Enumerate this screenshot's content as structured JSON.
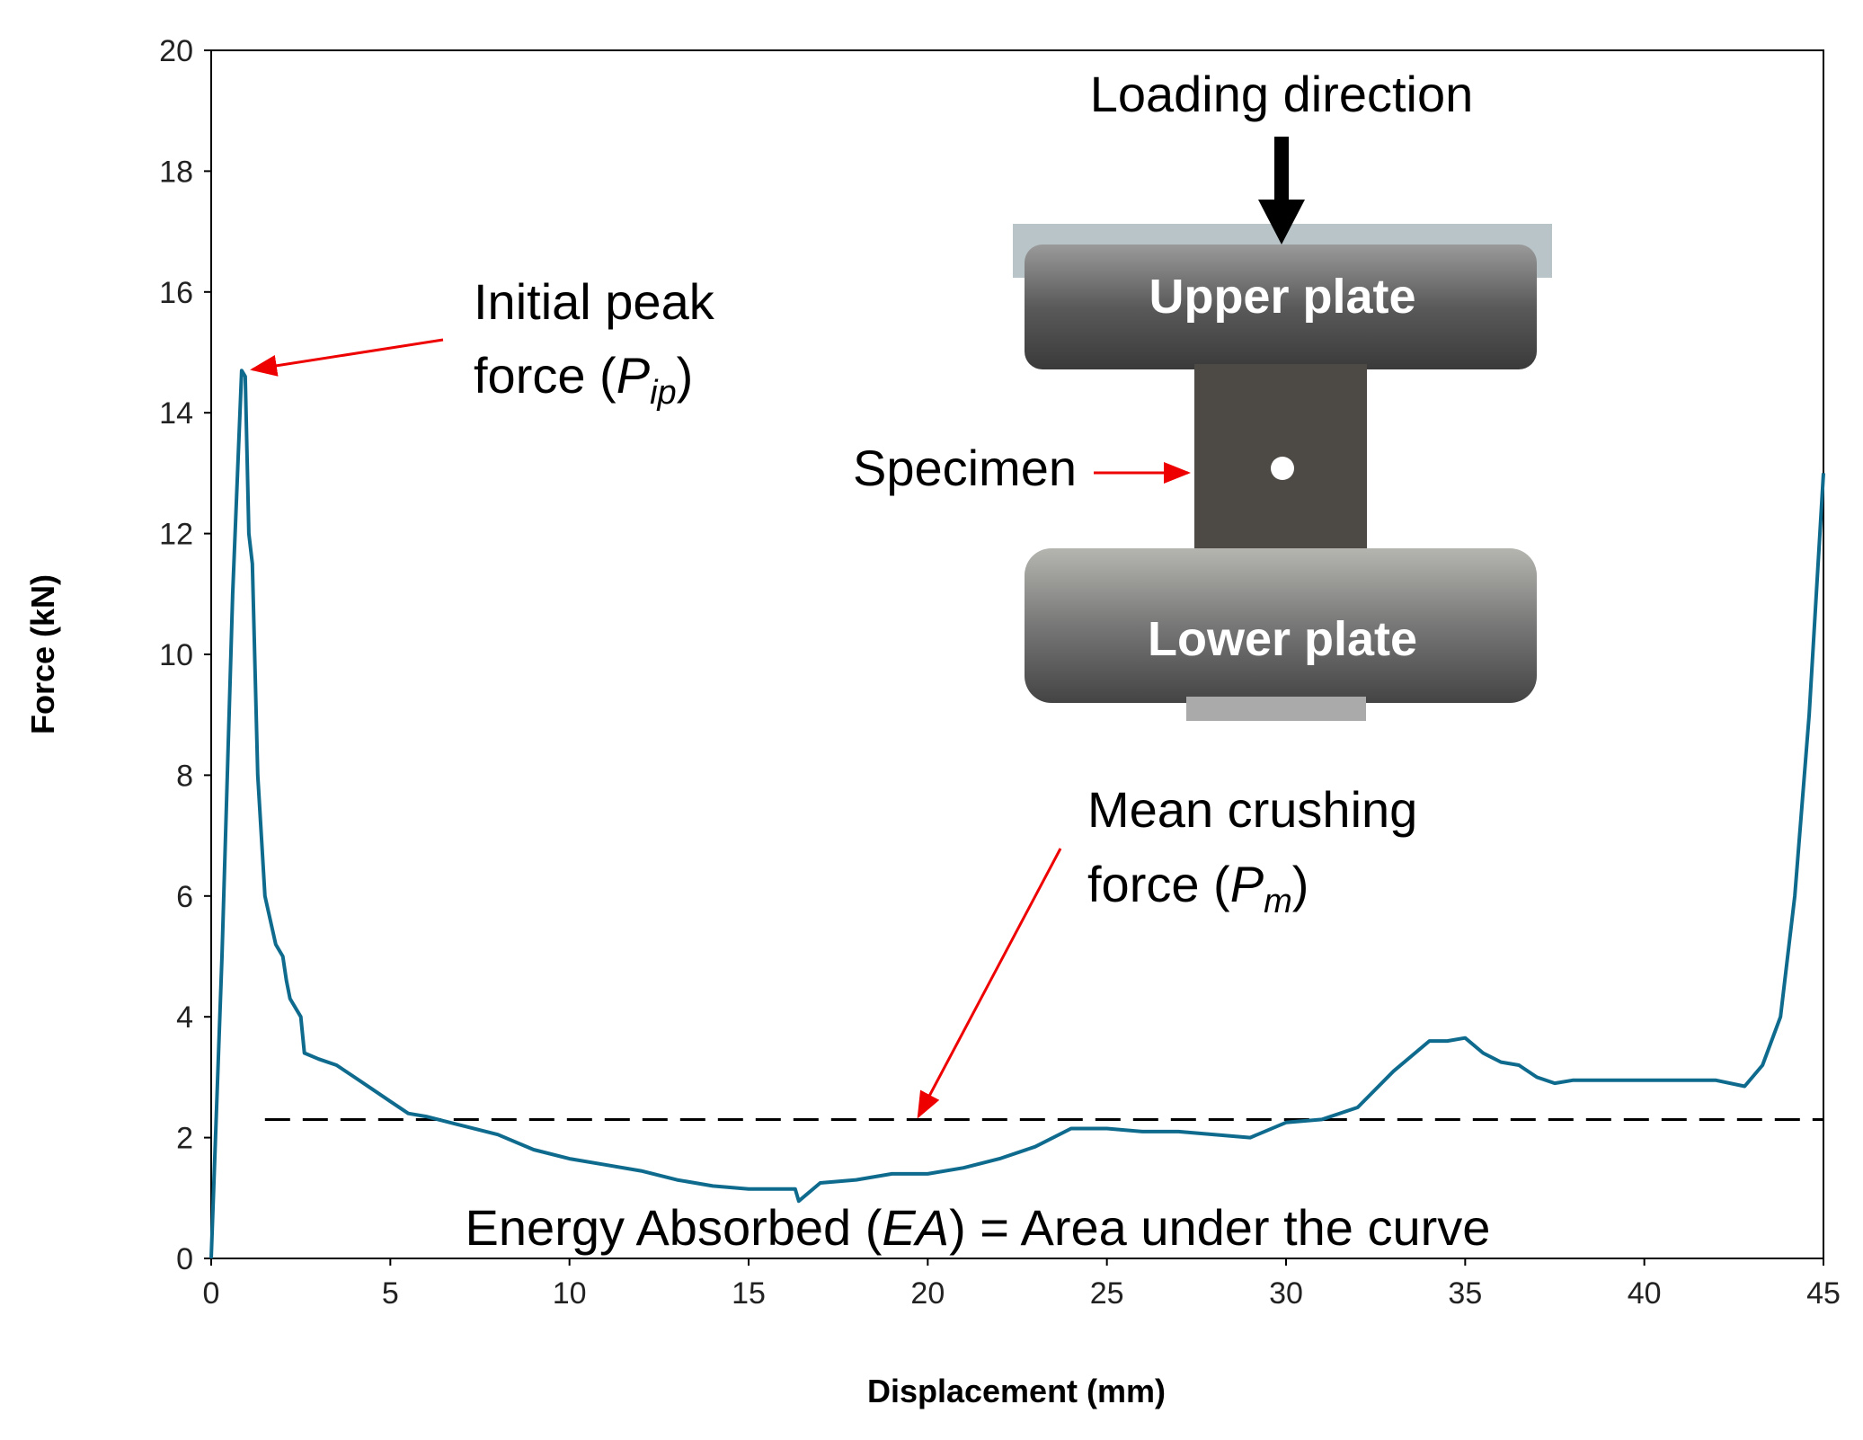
{
  "chart_data": {
    "type": "line",
    "x_label": "Displacement (mm)",
    "y_label": "Force (kN)",
    "xlim": [
      0,
      45
    ],
    "xticks": [
      0,
      5,
      10,
      15,
      20,
      25,
      30,
      35,
      40,
      45
    ],
    "ylim": [
      0,
      20
    ],
    "yticks": [
      0,
      2,
      4,
      6,
      8,
      10,
      12,
      14,
      16,
      18,
      20
    ],
    "series": [
      {
        "color": "#0f6b8e",
        "x": [
          0,
          0.3,
          0.6,
          0.85,
          0.95,
          1.05,
          1.15,
          1.3,
          1.5,
          1.8,
          2,
          2.1,
          2.2,
          2.5,
          2.6,
          3,
          3.5,
          4,
          4.5,
          5,
          5.5,
          6,
          7,
          8,
          9,
          10,
          11,
          12,
          13,
          14,
          15,
          16,
          16.3,
          16.4,
          17,
          18,
          19,
          20,
          21,
          22,
          23,
          24,
          25,
          26,
          27,
          28,
          29,
          30,
          31,
          32,
          33,
          34,
          34.5,
          35,
          35.5,
          36,
          36.5,
          37,
          37.5,
          38,
          40,
          42,
          42.8,
          43.3,
          43.8,
          44.2,
          44.6,
          45
        ],
        "values": [
          0,
          5,
          11,
          14.7,
          14.6,
          12,
          11.5,
          8,
          6,
          5.2,
          5,
          4.6,
          4.3,
          4,
          3.4,
          3.3,
          3.2,
          3,
          2.8,
          2.6,
          2.4,
          2.35,
          2.2,
          2.05,
          1.8,
          1.65,
          1.55,
          1.45,
          1.3,
          1.2,
          1.15,
          1.15,
          1.15,
          0.95,
          1.25,
          1.3,
          1.4,
          1.4,
          1.5,
          1.65,
          1.85,
          2.15,
          2.15,
          2.1,
          2.1,
          2.05,
          2,
          2.25,
          2.3,
          2.5,
          3.1,
          3.6,
          3.6,
          3.65,
          3.4,
          3.25,
          3.2,
          3,
          2.9,
          2.95,
          2.95,
          2.95,
          2.85,
          3.2,
          4,
          6,
          9,
          13
        ]
      }
    ],
    "mean_line": {
      "y": 2.3,
      "x": [
        1.5,
        45
      ]
    },
    "annotations": {
      "peak": [
        "Initial peak",
        "force (",
        "P",
        "ip",
        ")"
      ],
      "mean": [
        "Mean crushing",
        "force (",
        "P",
        "m",
        ")"
      ],
      "energy": [
        "Energy Absorbed (",
        "EA",
        ") = Area under the curve"
      ],
      "photo": {
        "loading": "Loading direction",
        "upper": "Upper plate",
        "specimen": "Specimen",
        "lower": "Lower plate"
      }
    }
  }
}
